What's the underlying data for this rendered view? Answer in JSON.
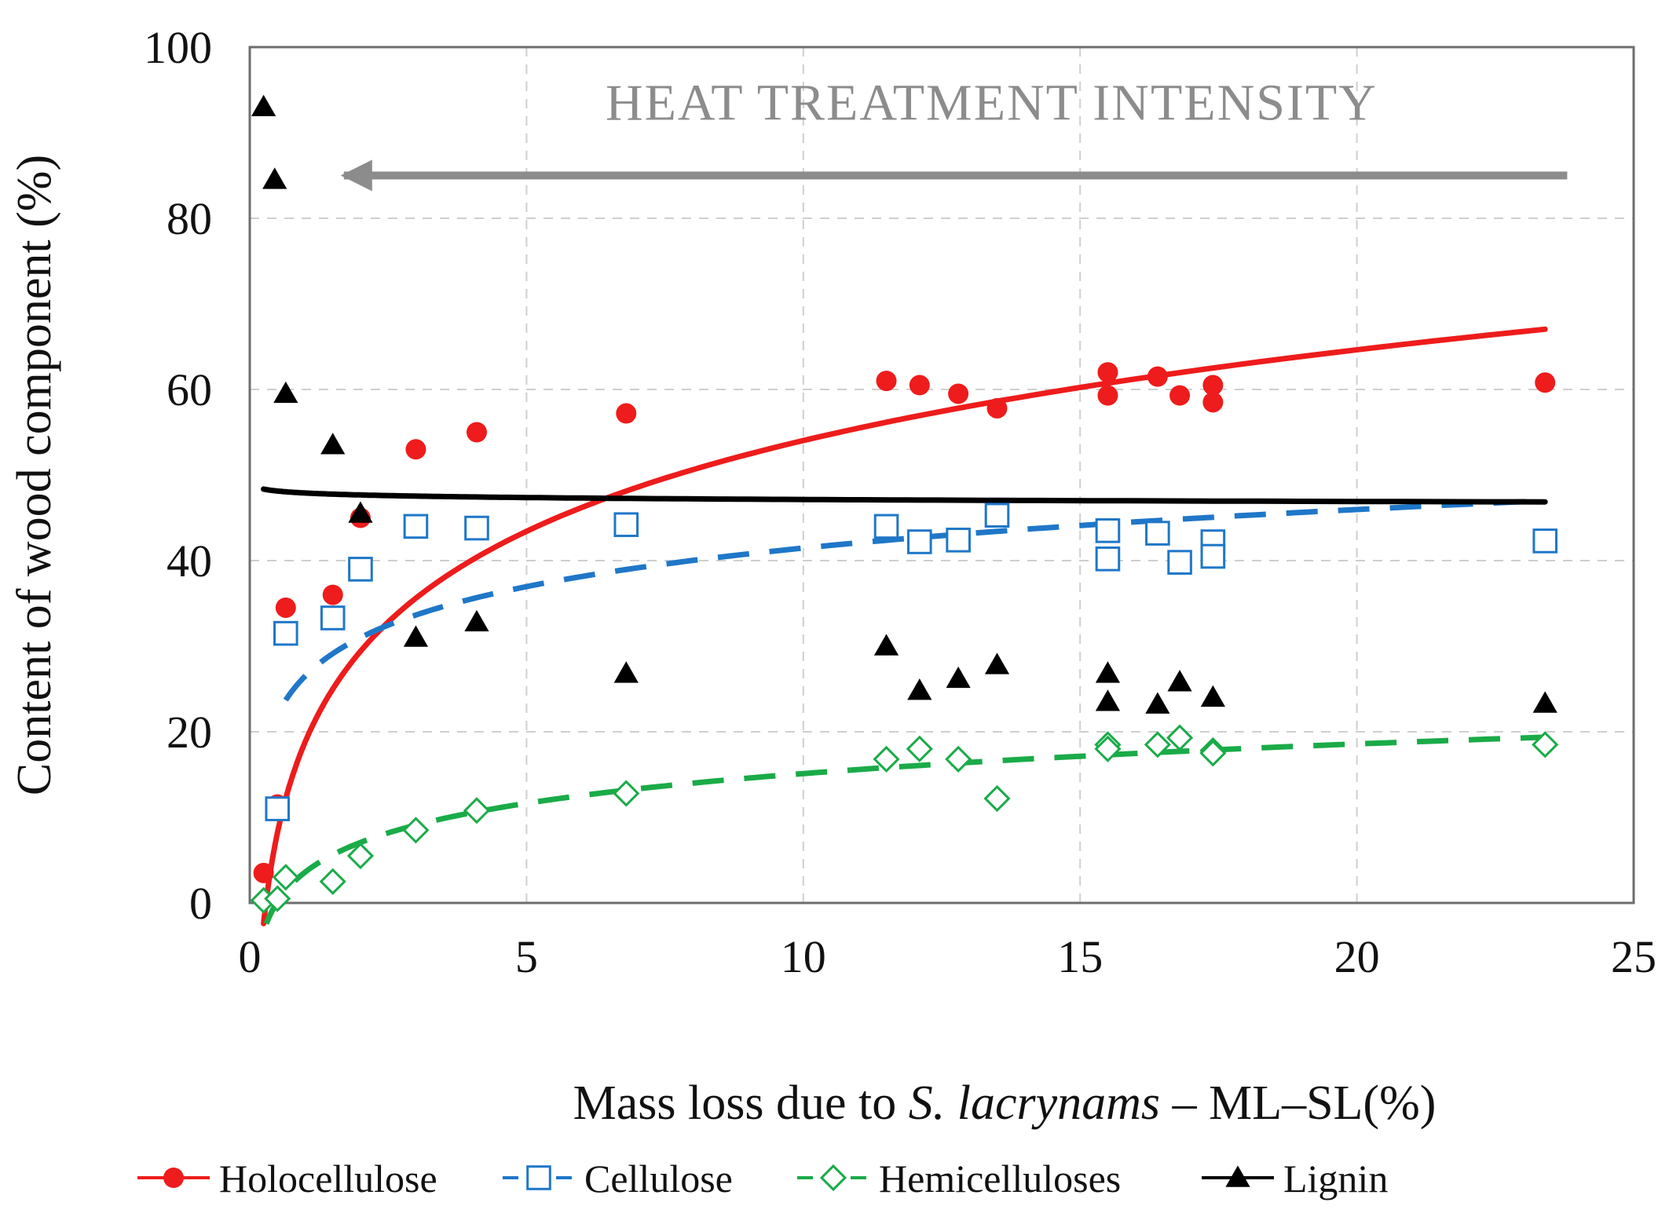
{
  "chart_data": {
    "type": "scatter",
    "title": "",
    "xlabel_parts": [
      "Mass loss due to ",
      "S. lacrynams",
      " – ML–SL(%)"
    ],
    "ylabel": "Content of wood component (%)",
    "xlim": [
      0,
      25
    ],
    "ylim": [
      0,
      100
    ],
    "xticks": [
      0,
      5,
      10,
      15,
      20,
      25
    ],
    "yticks": [
      0,
      20,
      40,
      60,
      80,
      100
    ],
    "grid": true,
    "legend_position": "bottom",
    "annotation": {
      "text": "HEAT TREATMENT INTENSITY",
      "arrow_from_x": 23.8,
      "arrow_to_x": 1.7,
      "arrow_y": 85,
      "text_center_x": 13.4,
      "text_y": 91.5,
      "color": "#8c8c8c"
    },
    "series": [
      {
        "name": "Holocellulose",
        "marker": "circle",
        "color": "#ee1c1c",
        "line_style": "solid",
        "points": [
          [
            0.25,
            3.5
          ],
          [
            0.5,
            11.5
          ],
          [
            0.65,
            34.5
          ],
          [
            1.5,
            36
          ],
          [
            2,
            45
          ],
          [
            3,
            53
          ],
          [
            4.1,
            55
          ],
          [
            6.8,
            57.2
          ],
          [
            11.5,
            61
          ],
          [
            12.1,
            60.5
          ],
          [
            12.8,
            59.5
          ],
          [
            13.5,
            57.8
          ],
          [
            15.5,
            62
          ],
          [
            15.5,
            59.3
          ],
          [
            16.4,
            61.5
          ],
          [
            16.8,
            59.3
          ],
          [
            17.4,
            60.5
          ],
          [
            17.4,
            58.5
          ],
          [
            23.4,
            60.8
          ]
        ],
        "trend": {
          "a": 18.8,
          "b": 15.3
        }
      },
      {
        "name": "Cellulose",
        "marker": "square-open",
        "color": "#1f77c8",
        "line_style": "dashed",
        "points": [
          [
            0.5,
            11
          ],
          [
            0.65,
            31.5
          ],
          [
            1.5,
            33.3
          ],
          [
            2,
            39
          ],
          [
            3,
            44
          ],
          [
            4.1,
            43.8
          ],
          [
            6.8,
            44.2
          ],
          [
            11.5,
            44
          ],
          [
            12.1,
            42.2
          ],
          [
            12.8,
            42.4
          ],
          [
            13.5,
            45.3
          ],
          [
            15.5,
            43.5
          ],
          [
            15.5,
            40.2
          ],
          [
            16.4,
            43.2
          ],
          [
            16.8,
            39.8
          ],
          [
            17.4,
            42.2
          ],
          [
            17.4,
            40.5
          ],
          [
            23.4,
            42.3
          ]
        ],
        "trend": {
          "a": 26.5,
          "b": 6.5,
          "x_start": 0.65
        }
      },
      {
        "name": "Hemicelluloses",
        "marker": "diamond-open",
        "color": "#1aab48",
        "line_style": "dashed",
        "points": [
          [
            0.25,
            0.3
          ],
          [
            0.5,
            0.5
          ],
          [
            0.65,
            3
          ],
          [
            1.5,
            2.5
          ],
          [
            2,
            5.5
          ],
          [
            3,
            8.5
          ],
          [
            4.1,
            10.8
          ],
          [
            6.8,
            12.8
          ],
          [
            11.5,
            16.8
          ],
          [
            12.1,
            18
          ],
          [
            12.8,
            16.8
          ],
          [
            13.5,
            12.2
          ],
          [
            15.5,
            18.5
          ],
          [
            15.5,
            18
          ],
          [
            16.4,
            18.5
          ],
          [
            16.8,
            19.3
          ],
          [
            17.4,
            17.8
          ],
          [
            17.4,
            17.5
          ],
          [
            23.4,
            18.5
          ]
        ],
        "trend": {
          "a": 3.6,
          "b": 5.0,
          "x_start": 0.3
        }
      },
      {
        "name": "Lignin",
        "marker": "triangle",
        "color": "#000000",
        "line_style": "solid",
        "points": [
          [
            0.25,
            93
          ],
          [
            0.45,
            84.5
          ],
          [
            0.65,
            59.5
          ],
          [
            1.5,
            53.5
          ],
          [
            2,
            45.5
          ],
          [
            3,
            31
          ],
          [
            4.1,
            32.8
          ],
          [
            6.8,
            26.8
          ],
          [
            11.5,
            30
          ],
          [
            12.1,
            24.8
          ],
          [
            12.8,
            26.2
          ],
          [
            13.5,
            27.8
          ],
          [
            15.5,
            26.8
          ],
          [
            15.5,
            23.5
          ],
          [
            16.4,
            23.2
          ],
          [
            16.8,
            25.8
          ],
          [
            17.4,
            24
          ],
          [
            23.4,
            23.3
          ]
        ],
        "trend": {
          "a": 47.9,
          "b": -0.33
        }
      }
    ]
  }
}
